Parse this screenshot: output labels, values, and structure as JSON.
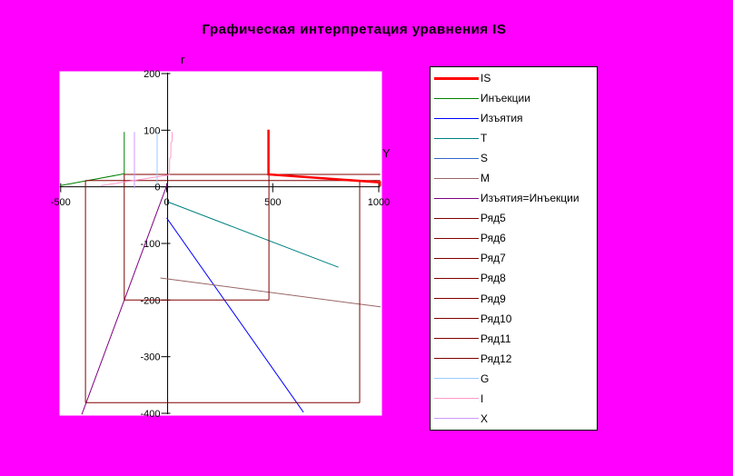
{
  "title": "Графическая интерпретация уравнения IS",
  "colors": {
    "background": "#FF00FF",
    "plot_background": "#FFFFFF",
    "axis": "#000000",
    "title_text": "#000000",
    "construction_lines": "#800000"
  },
  "chart_data": {
    "type": "line",
    "title": "Графическая интерпретация уравнения IS",
    "x_axis_label": "Y",
    "y_axis_label": "r",
    "xlim": [
      -500,
      1000
    ],
    "ylim": [
      -400,
      200
    ],
    "xticks": [
      -500,
      0,
      500,
      1000
    ],
    "yticks": [
      200,
      100,
      0,
      -100,
      -200,
      -300,
      -400
    ],
    "grid": false,
    "legend_position": "right",
    "plot_background": "#FFFFFF",
    "background_color": "#FF00FF",
    "series": [
      {
        "name": "IS",
        "color": "#FF0000",
        "width": 2.5,
        "points": [
          [
            480,
            101
          ],
          [
            480,
            22
          ],
          [
            1005,
            8
          ],
          [
            1005,
            1
          ]
        ]
      },
      {
        "name": "Инъекции",
        "color": "#008000",
        "width": 1,
        "points": [
          [
            -200,
            97
          ],
          [
            -200,
            23
          ],
          [
            -503,
            2
          ]
        ]
      },
      {
        "name": "Изъятия",
        "color": "#0000FF",
        "width": 1,
        "points": [
          [
            0,
            -55
          ],
          [
            645,
            -398
          ]
        ]
      },
      {
        "name": "T",
        "color": "#008080",
        "width": 1,
        "points": [
          [
            8,
            -27
          ],
          [
            810,
            -142
          ]
        ]
      },
      {
        "name": "S",
        "color": "#3366CC",
        "width": 1,
        "points": []
      },
      {
        "name": "M",
        "color": "#996666",
        "width": 1,
        "points": [
          [
            -30,
            -161
          ],
          [
            1008,
            -212
          ]
        ]
      },
      {
        "name": "Изъятия=Инъекции",
        "color": "#800080",
        "width": 1,
        "points": [
          [
            5,
            7
          ],
          [
            -400,
            -402
          ]
        ]
      },
      {
        "name": "Ряд5",
        "color": "#800000",
        "width": 1,
        "points": [
          [
            -200,
            22
          ],
          [
            1007,
            22
          ]
        ]
      },
      {
        "name": "Ряд6",
        "color": "#800000",
        "width": 1,
        "points": [
          [
            -383,
            11
          ],
          [
            1007,
            11
          ]
        ]
      },
      {
        "name": "Ряд7",
        "color": "#800000",
        "width": 1,
        "points": [
          [
            -200,
            22
          ],
          [
            -200,
            -200
          ]
        ]
      },
      {
        "name": "Ряд8",
        "color": "#800000",
        "width": 1,
        "points": [
          [
            -200,
            -200
          ],
          [
            482,
            -200
          ]
        ]
      },
      {
        "name": "Ряд9",
        "color": "#800000",
        "width": 1,
        "points": [
          [
            482,
            22
          ],
          [
            482,
            -200
          ]
        ]
      },
      {
        "name": "Ряд10",
        "color": "#800000",
        "width": 1,
        "points": [
          [
            -383,
            11
          ],
          [
            -383,
            -381
          ]
        ]
      },
      {
        "name": "Ряд11",
        "color": "#800000",
        "width": 1,
        "points": [
          [
            -383,
            -381
          ],
          [
            910,
            -381
          ]
        ]
      },
      {
        "name": "Ряд12",
        "color": "#800000",
        "width": 1,
        "points": [
          [
            910,
            11
          ],
          [
            910,
            -381
          ]
        ]
      },
      {
        "name": "G",
        "color": "#99CCFF",
        "width": 1,
        "points": [
          [
            -45,
            97
          ],
          [
            -45,
            1
          ]
        ]
      },
      {
        "name": "I",
        "color": "#FF99CC",
        "width": 1,
        "points": [
          [
            -310,
            2
          ],
          [
            10,
            21
          ],
          [
            13,
            22
          ],
          [
            14,
            50
          ],
          [
            19,
            52
          ],
          [
            20,
            78
          ],
          [
            25,
            80
          ],
          [
            26,
            97
          ]
        ]
      },
      {
        "name": "X",
        "color": "#CC99FF",
        "width": 1,
        "points": [
          [
            -152,
            97
          ],
          [
            -152,
            -3
          ]
        ]
      }
    ]
  }
}
